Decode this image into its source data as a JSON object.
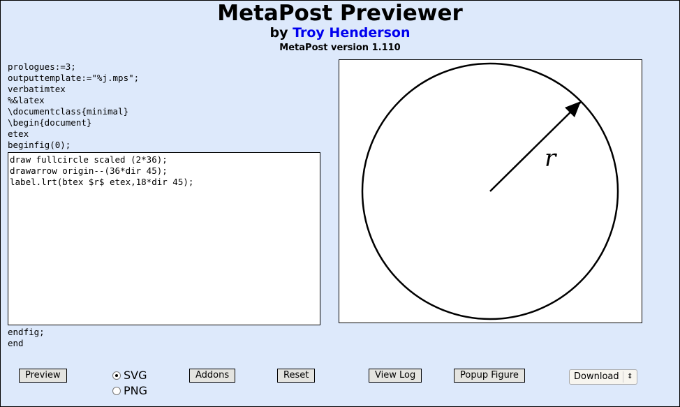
{
  "header": {
    "title": "MetaPost Previewer",
    "by_prefix": "by",
    "author": "Troy Henderson",
    "version": "MetaPost version 1.110"
  },
  "code": {
    "preamble": "prologues:=3;\noutputtemplate:=\"%j.mps\";\nverbatimtex\n%&latex\n\\documentclass{minimal}\n\\begin{document}\netex\nbeginfig(0);",
    "editor": "draw fullcircle scaled (2*36);\ndrawarrow origin--(36*dir 45);\nlabel.lrt(btex $r$ etex,18*dir 45);",
    "postamble": "endfig;\nend"
  },
  "figure": {
    "label": "r"
  },
  "toolbar": {
    "preview": "Preview",
    "format_options": [
      {
        "label": "SVG",
        "selected": true
      },
      {
        "label": "PNG",
        "selected": false
      }
    ],
    "addons": "Addons",
    "reset": "Reset",
    "view_log": "View Log",
    "popup": "Popup Figure",
    "download": "Download"
  }
}
